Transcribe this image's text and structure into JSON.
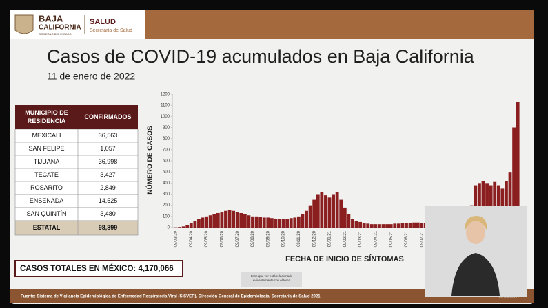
{
  "header": {
    "logo_line1": "BAJA",
    "logo_line2": "CALIFORNIA",
    "logo_line3": "GOBIERNO DEL ESTADO",
    "dept": "SALUD",
    "dept_sub": "Secretaría de Salud"
  },
  "slide": {
    "title": "Casos de COVID-19 acumulados en Baja California",
    "date": "11 de enero de 2022"
  },
  "table": {
    "headers": [
      "MUNICIPIO DE RESIDENCIA",
      "CONFIRMADOS"
    ],
    "rows": [
      [
        "MEXICALI",
        "36,563"
      ],
      [
        "SAN FELIPE",
        "1,057"
      ],
      [
        "TIJUANA",
        "36,998"
      ],
      [
        "TECATE",
        "3,427"
      ],
      [
        "ROSARITO",
        "2,849"
      ],
      [
        "ENSENADA",
        "14,525"
      ],
      [
        "SAN QUINTÍN",
        "3,480"
      ]
    ],
    "total": [
      "ESTATAL",
      "98,899"
    ]
  },
  "totals_box": "CASOS TOTALES EN MÉXICO: 4,170,066",
  "chart_data": {
    "type": "bar",
    "ylabel": "NÚMERO DE CASOS",
    "xlabel": "FECHA DE INICIO DE SÍNTOMAS",
    "color": "#8b1e1e",
    "categories": [
      "09/03/20",
      null,
      null,
      null,
      "09/04/20",
      null,
      null,
      null,
      "09/05/20",
      null,
      null,
      null,
      "09/06/20",
      null,
      null,
      null,
      "09/07/20",
      null,
      null,
      null,
      "09/08/20",
      null,
      null,
      null,
      "09/09/20",
      null,
      null,
      null,
      "09/10/20",
      null,
      null,
      null,
      "09/11/20",
      null,
      null,
      null,
      "09/12/20",
      null,
      null,
      null,
      "09/01/21",
      null,
      null,
      null,
      "09/02/21",
      null,
      null,
      null,
      "09/03/21",
      null,
      null,
      null,
      "09/04/21",
      null,
      null,
      null,
      "09/05/21",
      null,
      null,
      null,
      "09/06/21",
      null,
      null,
      null,
      "09/07/21",
      null,
      null,
      null,
      null,
      null,
      null,
      null,
      null,
      null,
      null,
      null,
      null,
      null,
      null,
      null,
      null,
      null,
      null,
      null,
      null,
      null,
      null,
      null,
      null,
      null
    ],
    "values": [
      2,
      5,
      10,
      20,
      40,
      60,
      80,
      90,
      100,
      110,
      120,
      130,
      140,
      150,
      160,
      150,
      140,
      130,
      120,
      110,
      100,
      100,
      95,
      90,
      90,
      85,
      80,
      75,
      75,
      80,
      85,
      90,
      100,
      120,
      150,
      200,
      250,
      300,
      320,
      290,
      270,
      300,
      320,
      250,
      180,
      120,
      80,
      60,
      50,
      40,
      35,
      30,
      30,
      30,
      30,
      30,
      30,
      35,
      35,
      40,
      40,
      40,
      45,
      45,
      40,
      40,
      45,
      50,
      50,
      50,
      55,
      55,
      50,
      50,
      50,
      50,
      60,
      200,
      380,
      400,
      420,
      400,
      380,
      410,
      380,
      350,
      420,
      500,
      900,
      1130
    ],
    "ylim": [
      0,
      1200
    ],
    "yticks": [
      0,
      100,
      200,
      300,
      400,
      500,
      600,
      700,
      800,
      900,
      1000,
      1100,
      1200
    ]
  },
  "caption": "tiene que ver está relacionado evidentemente con el tema",
  "source": "Fuente: Sistema de Vigilancia Epidemiológica de Enfermedad Respiratoria Viral (SISVER). Dirección General de Epidemiología. Secretaría de Salud 2021.",
  "corner_text": "por ubicación."
}
